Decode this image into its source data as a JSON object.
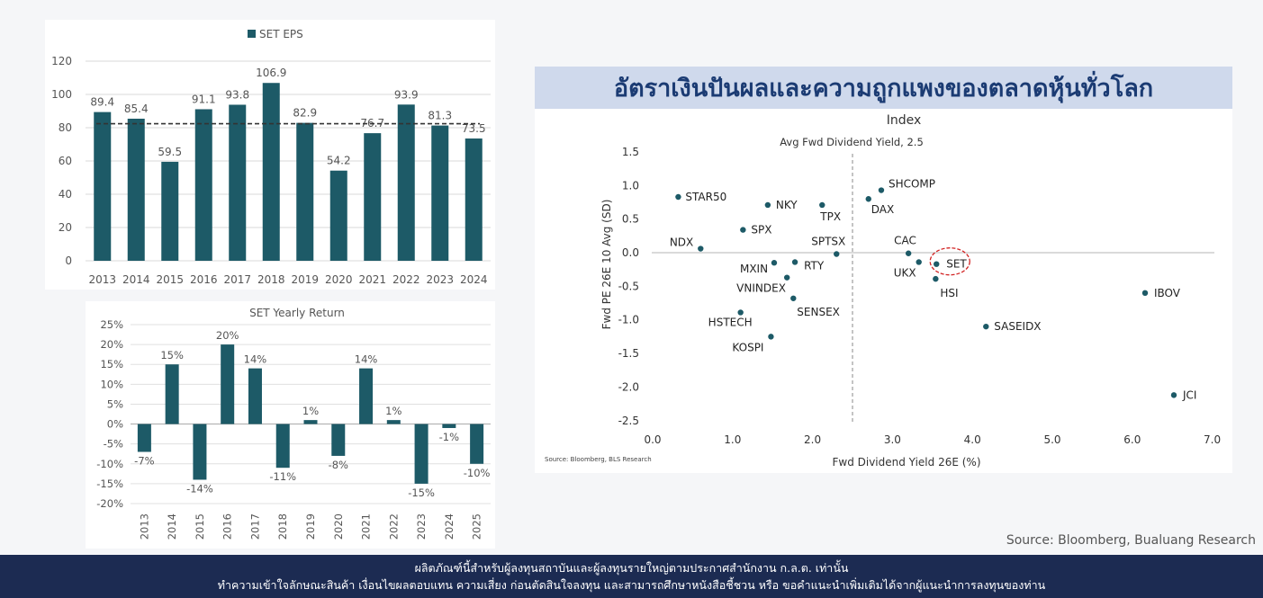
{
  "colors": {
    "bar": "#1d5a67",
    "dot": "#1d5a67",
    "banner_bg": "#cfd9ec",
    "banner_text": "#1b3b73",
    "footer_bg": "#1c2b52",
    "highlight": "#d22222"
  },
  "chart_data": [
    {
      "type": "bar",
      "title": "",
      "legend": [
        "SET EPS"
      ],
      "categories": [
        "2013",
        "2014",
        "2015",
        "2016",
        "2017",
        "2018",
        "2019",
        "2020",
        "2021",
        "2022",
        "2023",
        "2024"
      ],
      "values": [
        89.4,
        85.4,
        59.5,
        91.1,
        93.8,
        106.9,
        82.9,
        54.2,
        76.7,
        93.9,
        81.3,
        73.5
      ],
      "value_labels": [
        "89.4",
        "85.4",
        "59.5",
        "91.1",
        "93.8",
        "106.9",
        "82.9",
        "54.2",
        "76.7",
        "93.9",
        "81.3",
        "73.5"
      ],
      "yticks": [
        "0",
        "20",
        "40",
        "60",
        "80",
        "100",
        "120"
      ],
      "ylim": [
        0,
        120
      ],
      "average_line": 82.4,
      "grid": true
    },
    {
      "type": "bar",
      "title": "SET Yearly Return",
      "categories": [
        "2013",
        "2014",
        "2015",
        "2016",
        "2017",
        "2018",
        "2019",
        "2020",
        "2021",
        "2022",
        "2023",
        "2024",
        "2025"
      ],
      "values": [
        -7,
        15,
        -14,
        20,
        14,
        -11,
        1,
        -8,
        14,
        1,
        -15,
        -1,
        -10
      ],
      "value_labels": [
        "-7%",
        "15%",
        "-14%",
        "20%",
        "14%",
        "-11%",
        "1%",
        "-8%",
        "14%",
        "1%",
        "-15%",
        "-1%",
        "-10%"
      ],
      "yticks": [
        "25%",
        "20%",
        "15%",
        "10%",
        "5%",
        "0%",
        "-5%",
        "-10%",
        "-15%",
        "-20%"
      ],
      "ylim": [
        -20,
        25
      ],
      "grid": true
    },
    {
      "type": "scatter",
      "banner": "อัตราเงินปันผลและความถูกแพงของตลาดหุ้นทั่วโลก",
      "title": "Index",
      "annotation": "Avg Fwd Dividend Yield, 2.5",
      "xlabel": "Fwd Dividend Yield 26E (%)",
      "ylabel": "Fwd PE 26E 10 Avg (SD)",
      "source": "Source: Bloomberg, BLS Research",
      "xlim": [
        0,
        7
      ],
      "ylim": [
        -2.5,
        1.5
      ],
      "xticks": [
        "0.0",
        "1.0",
        "2.0",
        "3.0",
        "4.0",
        "5.0",
        "6.0",
        "7.0"
      ],
      "yticks": [
        "1.5",
        "1.0",
        "0.5",
        "0.0",
        "-0.5",
        "-1.0",
        "-1.5",
        "-2.0",
        "-2.5"
      ],
      "vline_x": 2.5,
      "highlighted": "SET",
      "points": [
        {
          "label": "STAR50",
          "x": 0.32,
          "y": 0.83
        },
        {
          "label": "NKY",
          "x": 1.44,
          "y": 0.71
        },
        {
          "label": "TPX",
          "x": 2.12,
          "y": 0.71
        },
        {
          "label": "SHCOMP",
          "x": 2.86,
          "y": 0.93
        },
        {
          "label": "DAX",
          "x": 2.7,
          "y": 0.8
        },
        {
          "label": "SPX",
          "x": 1.13,
          "y": 0.34
        },
        {
          "label": "NDX",
          "x": 0.6,
          "y": 0.06
        },
        {
          "label": "SPTSX",
          "x": 2.3,
          "y": -0.02
        },
        {
          "label": "CAC",
          "x": 3.2,
          "y": -0.01
        },
        {
          "label": "MXIN",
          "x": 1.52,
          "y": -0.15
        },
        {
          "label": "RTY",
          "x": 1.78,
          "y": -0.14
        },
        {
          "label": "UKX",
          "x": 3.33,
          "y": -0.14
        },
        {
          "label": "SET",
          "x": 3.55,
          "y": -0.17
        },
        {
          "label": "VNINDEX",
          "x": 1.68,
          "y": -0.37
        },
        {
          "label": "HSI",
          "x": 3.54,
          "y": -0.39
        },
        {
          "label": "SENSEX",
          "x": 1.76,
          "y": -0.68
        },
        {
          "label": "IBOV",
          "x": 6.16,
          "y": -0.6
        },
        {
          "label": "HSTECH",
          "x": 1.1,
          "y": -0.89
        },
        {
          "label": "SASEIDX",
          "x": 4.17,
          "y": -1.1
        },
        {
          "label": "KOSPI",
          "x": 1.48,
          "y": -1.25
        },
        {
          "label": "JCI",
          "x": 6.52,
          "y": -2.12
        }
      ]
    }
  ],
  "page_source": "Source: Bloomberg, Bualuang Research",
  "footer": {
    "line1": "ผลิตภัณฑ์นี้สำหรับผู้ลงทุนสถาบันและผู้ลงทุนรายใหญ่ตามประกาศสำนักงาน ก.ล.ต. เท่านั้น",
    "line2": "ทำความเข้าใจลักษณะสินค้า เงื่อนไขผลตอบแทน ความเสี่ยง ก่อนตัดสินใจลงทุน และสามารถศึกษาหนังสือชี้ชวน หรือ ขอคำแนะนำเพิ่มเติมได้จากผู้แนะนำการลงทุนของท่าน"
  }
}
